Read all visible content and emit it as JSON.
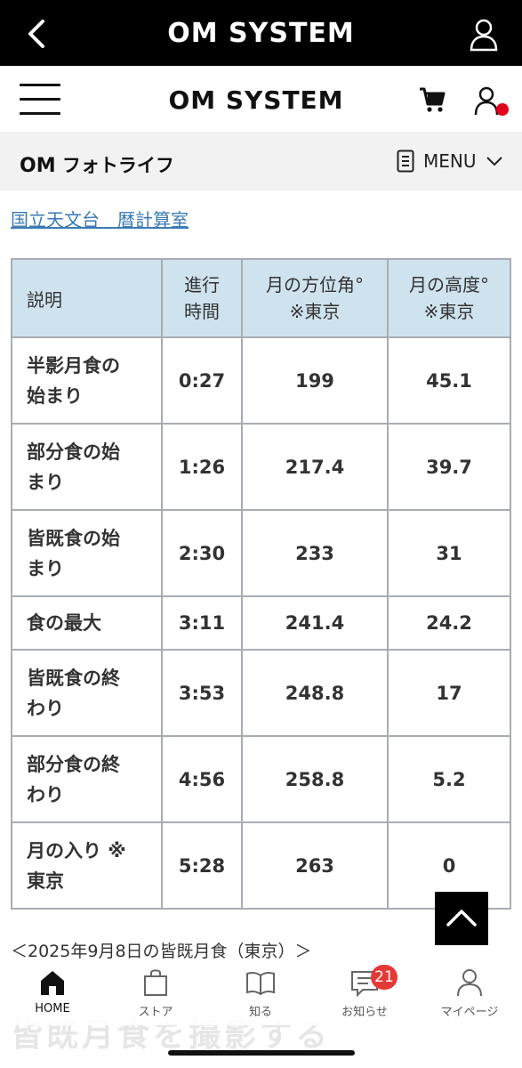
{
  "appbar": {
    "brand": "OM SYSTEM",
    "back_icon": "chevron-left-icon",
    "account_icon": "user-icon"
  },
  "header": {
    "brand": "OM SYSTEM",
    "cart_icon": "cart-icon",
    "user_icon": "user-icon",
    "notify_color": "#e0001b"
  },
  "subheader": {
    "logo_om": "OM",
    "logo_text": "フォトライフ",
    "menu_label": "MENU"
  },
  "breadcrumb_link": "国立天文台　暦計算室",
  "table": {
    "headers": [
      "説明",
      "進行\n時間",
      "月の方位角°\n※東京",
      "月の高度°\n※東京"
    ],
    "rows": [
      [
        "半影月食の\n始まり",
        "0:27",
        "199",
        "45.1"
      ],
      [
        "部分食の始\nまり",
        "1:26",
        "217.4",
        "39.7"
      ],
      [
        "皆既食の始\nまり",
        "2:30",
        "233",
        "31"
      ],
      [
        "食の最大",
        "3:11",
        "241.4",
        "24.2"
      ],
      [
        "皆既食の終\nわり",
        "3:53",
        "248.8",
        "17"
      ],
      [
        "部分食の終\nわり",
        "4:56",
        "258.8",
        "5.2"
      ],
      [
        "月の入り ※\n東京",
        "5:28",
        "263",
        "0"
      ]
    ]
  },
  "caption": "＜2025年9月8日の皆既月食（東京）＞",
  "ghost_heading": "皆既月食を撮影する",
  "nav": [
    {
      "label": "HOME",
      "icon": "home-icon",
      "active": true
    },
    {
      "label": "ストア",
      "icon": "shopping-bag-icon"
    },
    {
      "label": "知る",
      "icon": "book-icon"
    },
    {
      "label": "お知らせ",
      "icon": "chat-icon",
      "badge": "21"
    },
    {
      "label": "マイページ",
      "icon": "user-icon"
    }
  ],
  "colors": {
    "header_bg": "#000000",
    "table_header_bg": "#cfe3ee",
    "badge": "#e53935",
    "link": "#3a7ab5"
  }
}
